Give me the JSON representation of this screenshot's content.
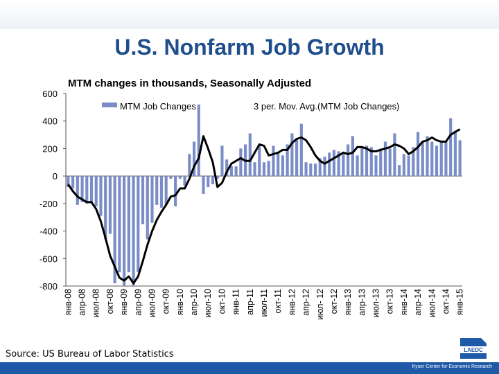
{
  "header": {
    "title": "U.S. Nonfarm Job Growth",
    "subtitle": "MTM changes in thousands, Seasonally Adjusted"
  },
  "source": "Source: US Bureau of Labor Statistics",
  "footer": {
    "credit": "Kyser Center for Economic Research",
    "logo_text": "LAEDC"
  },
  "colors": {
    "title": "#1f4e8c",
    "bars": "#7b8dc7",
    "line": "#000000",
    "footer": "#1f5aa8"
  },
  "chart_data": {
    "type": "bar",
    "title": "U.S. Nonfarm Job Growth",
    "subtitle": "MTM changes in thousands, Seasonally Adjusted",
    "xlabel": "",
    "ylabel": "",
    "ylim": [
      -800,
      600
    ],
    "yticks": [
      600,
      400,
      200,
      0,
      -200,
      -400,
      -600,
      -800
    ],
    "grid": false,
    "legend_position": "top",
    "categories": [
      "янв-08",
      "фев-08",
      "мар-08",
      "апр-08",
      "май-08",
      "июн-08",
      "июл-08",
      "авг-08",
      "сен-08",
      "окт-08",
      "ноя-08",
      "дек-08",
      "янв-09",
      "фев-09",
      "мар-09",
      "апр-09",
      "май-09",
      "июн-09",
      "июл-09",
      "авг-09",
      "сен-09",
      "окт-09",
      "ноя-09",
      "дек-09",
      "янв-10",
      "фев-10",
      "мар-10",
      "апр-10",
      "май-10",
      "июн-10",
      "июл-10",
      "авг-10",
      "сен-10",
      "окт-10",
      "ноя-10",
      "дек-10",
      "янв-11",
      "фев-11",
      "мар-11",
      "апр-11",
      "май-11",
      "июн-11",
      "июл-11",
      "авг-11",
      "сен-11",
      "окт-11",
      "ноя-11",
      "дек-11",
      "янв-12",
      "фев-12",
      "мар-12",
      "апр-12",
      "май-12",
      "июн-12",
      "июл-12",
      "авг-12",
      "сен-12",
      "окт-12",
      "ноя-12",
      "дек-12",
      "янв-13",
      "фев-13",
      "мар-13",
      "апр-13",
      "май-13",
      "июн-13",
      "июл-13",
      "авг-13",
      "сен-13",
      "окт-13",
      "ноя-13",
      "дек-13",
      "янв-14",
      "фев-14",
      "мар-14",
      "апр-14",
      "май-14",
      "июн-14",
      "июл-14",
      "авг-14",
      "сен-14",
      "окт-14",
      "ноя-14",
      "дек-14",
      "янв-15"
    ],
    "tick_labels": [
      "янв-08",
      "апр-08",
      "июл-08",
      "окт-08",
      "янв-09",
      "апр-09",
      "июл-09",
      "окт-09",
      "янв-10",
      "апр-10",
      "июл-10",
      "окт-10",
      "янв-11",
      "апр-11",
      "июл-11",
      "окт-11",
      "янв-12",
      "апр-12",
      "июл- 12",
      "окт-12",
      "янв-13",
      "апр-13",
      "июл-13",
      "окт-13",
      "янв-14",
      "апр-14",
      "июл-14",
      "окт-14",
      "янв-15"
    ],
    "tick_every": 3,
    "series": [
      {
        "name": "MTM Job Changes",
        "type": "bar",
        "values": [
          -80,
          -90,
          -210,
          -190,
          -200,
          -190,
          -220,
          -290,
          -460,
          -420,
          -780,
          -700,
          -800,
          -700,
          -800,
          -700,
          -350,
          -460,
          -340,
          -210,
          -230,
          -210,
          -20,
          -220,
          -20,
          -70,
          160,
          250,
          520,
          -130,
          -80,
          -60,
          -20,
          220,
          120,
          70,
          70,
          200,
          230,
          310,
          100,
          230,
          100,
          110,
          220,
          170,
          150,
          230,
          310,
          270,
          380,
          100,
          90,
          90,
          130,
          140,
          170,
          190,
          180,
          160,
          230,
          290,
          150,
          210,
          220,
          210,
          150,
          200,
          250,
          200,
          310,
          80,
          160,
          150,
          210,
          320,
          250,
          290,
          250,
          220,
          250,
          250,
          420,
          330,
          260
        ]
      },
      {
        "name": "3 per. Mov. Avg.(MTM Job Changes)",
        "type": "line",
        "values": [
          -60,
          -110,
          -150,
          -170,
          -190,
          -190,
          -240,
          -330,
          -450,
          -580,
          -660,
          -740,
          -760,
          -730,
          -780,
          -730,
          -620,
          -500,
          -400,
          -320,
          -260,
          -210,
          -150,
          -140,
          -90,
          -90,
          -20,
          70,
          130,
          290,
          200,
          100,
          -80,
          -50,
          30,
          90,
          110,
          130,
          110,
          110,
          170,
          230,
          220,
          150,
          160,
          170,
          190,
          190,
          240,
          270,
          280,
          260,
          210,
          150,
          110,
          90,
          110,
          130,
          150,
          170,
          160,
          170,
          210,
          210,
          200,
          180,
          180,
          190,
          200,
          210,
          230,
          220,
          200,
          160,
          180,
          210,
          250,
          260,
          280,
          260,
          250,
          250,
          300,
          320,
          340
        ]
      }
    ]
  }
}
